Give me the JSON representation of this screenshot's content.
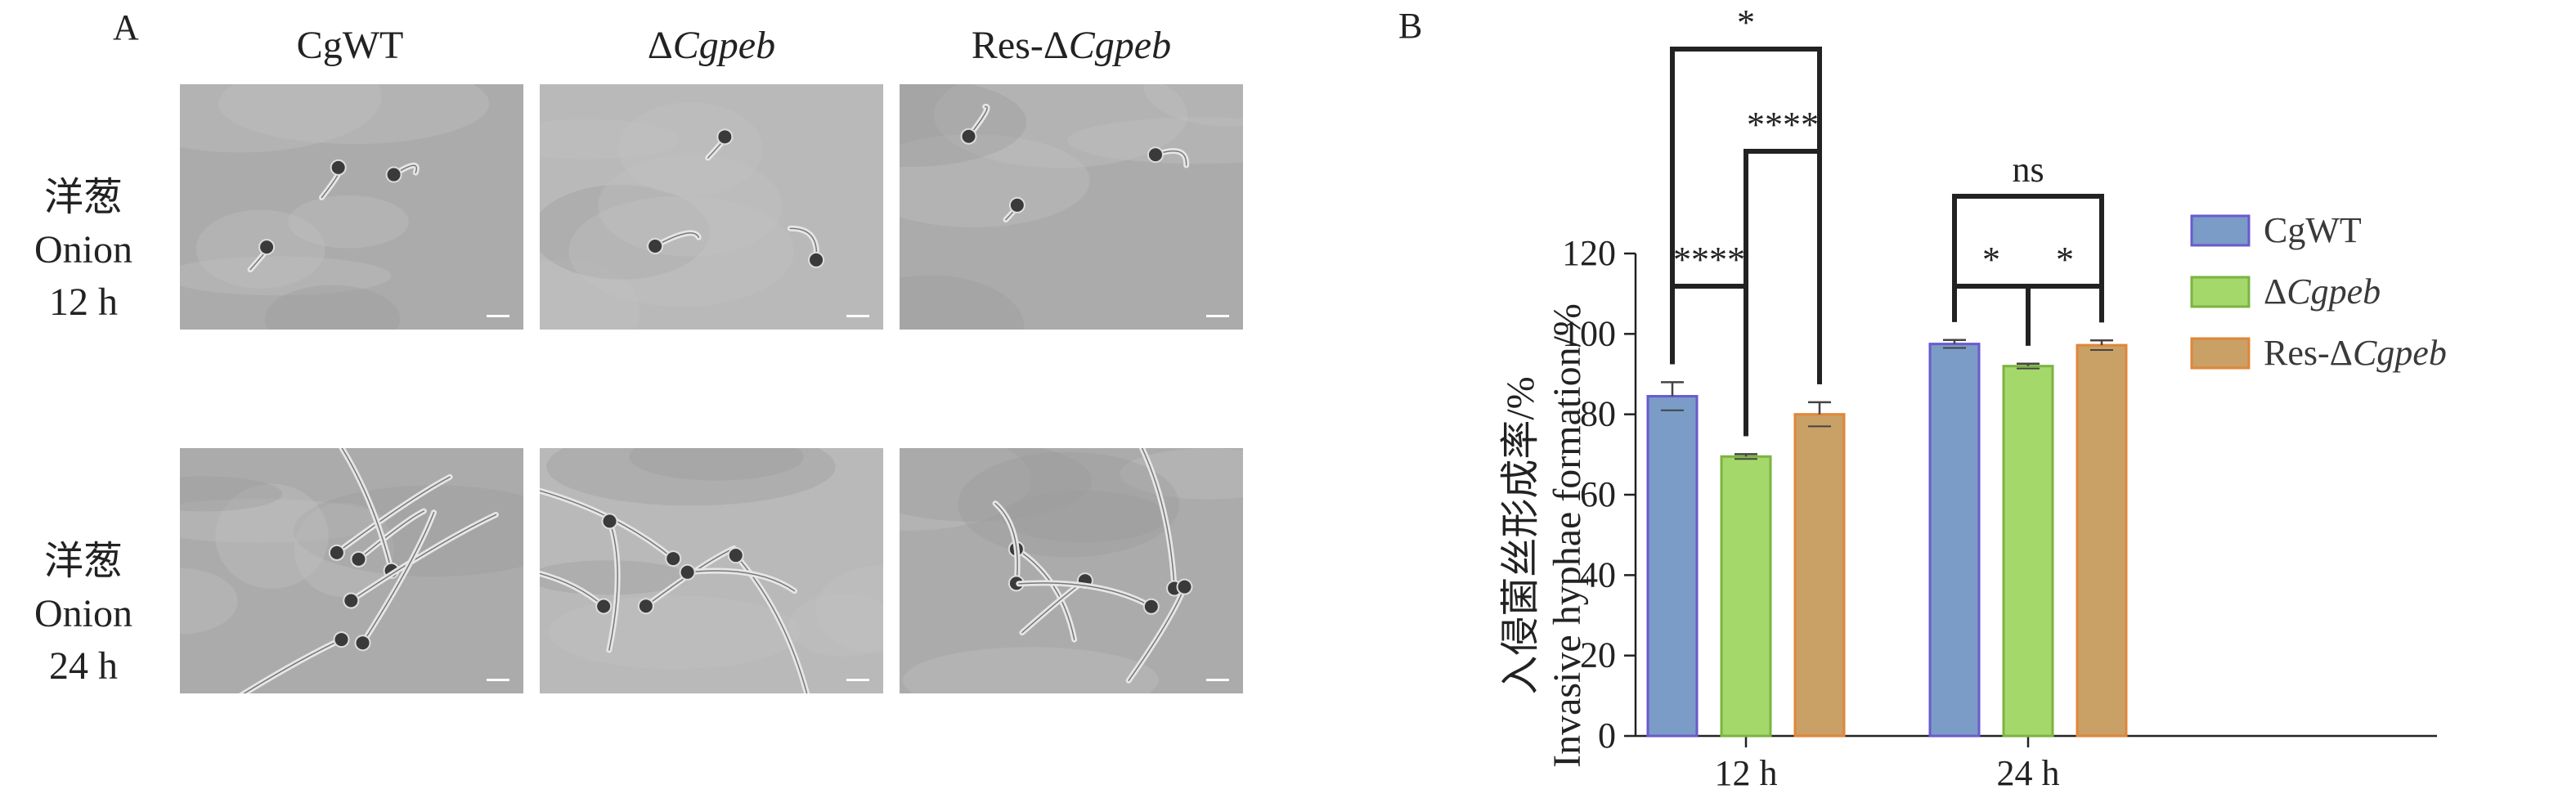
{
  "panel_a": {
    "letter": "A",
    "columns": [
      {
        "parts": [
          {
            "text": "CgWT",
            "italic": false
          }
        ]
      },
      {
        "parts": [
          {
            "text": "Δ",
            "italic": false
          },
          {
            "text": "Cgpeb",
            "italic": true
          }
        ]
      },
      {
        "parts": [
          {
            "text": "Res-Δ",
            "italic": false
          },
          {
            "text": "Cgpeb",
            "italic": true
          }
        ]
      }
    ],
    "rows": [
      {
        "cn": "洋葱",
        "en": "Onion",
        "time": "12 h"
      },
      {
        "cn": "洋葱",
        "en": "Onion",
        "time": "24 h"
      }
    ]
  },
  "chart_data": {
    "panel_letter": "B",
    "type": "bar",
    "categories": [
      "12 h",
      "24 h"
    ],
    "series": [
      {
        "name": "CgWT",
        "name_parts": [
          {
            "text": "CgWT",
            "italic": false
          }
        ],
        "values": [
          84.5,
          97.5
        ],
        "errors": [
          3.5,
          1.0
        ],
        "color": "#7a9cc6",
        "edge": "#6a5acd"
      },
      {
        "name": "ΔCgpeb",
        "name_parts": [
          {
            "text": "Δ",
            "italic": false
          },
          {
            "text": "Cgpeb",
            "italic": true
          }
        ],
        "values": [
          69.5,
          92.0
        ],
        "errors": [
          0.6,
          0.6
        ],
        "color": "#a5d86a",
        "edge": "#7cb342"
      },
      {
        "name": "Res-ΔCgpeb",
        "name_parts": [
          {
            "text": "Res-Δ",
            "italic": false
          },
          {
            "text": "Cgpeb",
            "italic": true
          }
        ],
        "values": [
          80.0,
          97.2
        ],
        "errors": [
          3.0,
          1.2
        ],
        "color": "#c9a065",
        "edge": "#e0863a"
      }
    ],
    "ylabel_cn": "入侵菌丝形成率/%",
    "ylabel_en": "Invasive hyphae formation/%",
    "ylim": [
      0,
      120
    ],
    "yticks": [
      0,
      20,
      40,
      60,
      80,
      100,
      120
    ],
    "legend_position": "right",
    "significance": [
      {
        "category": 0,
        "from": 0,
        "to": 1,
        "label": "****",
        "level": 1
      },
      {
        "category": 0,
        "from": 1,
        "to": 2,
        "label": "****",
        "level": 2
      },
      {
        "category": 0,
        "from": 0,
        "to": 2,
        "label": "*",
        "level": 3
      },
      {
        "category": 1,
        "from": 0,
        "to": 1,
        "label": "*",
        "level": 1
      },
      {
        "category": 1,
        "from": 1,
        "to": 2,
        "label": "*",
        "level": 1
      },
      {
        "category": 1,
        "from": 0,
        "to": 2,
        "label": "ns",
        "level": 2
      }
    ]
  }
}
